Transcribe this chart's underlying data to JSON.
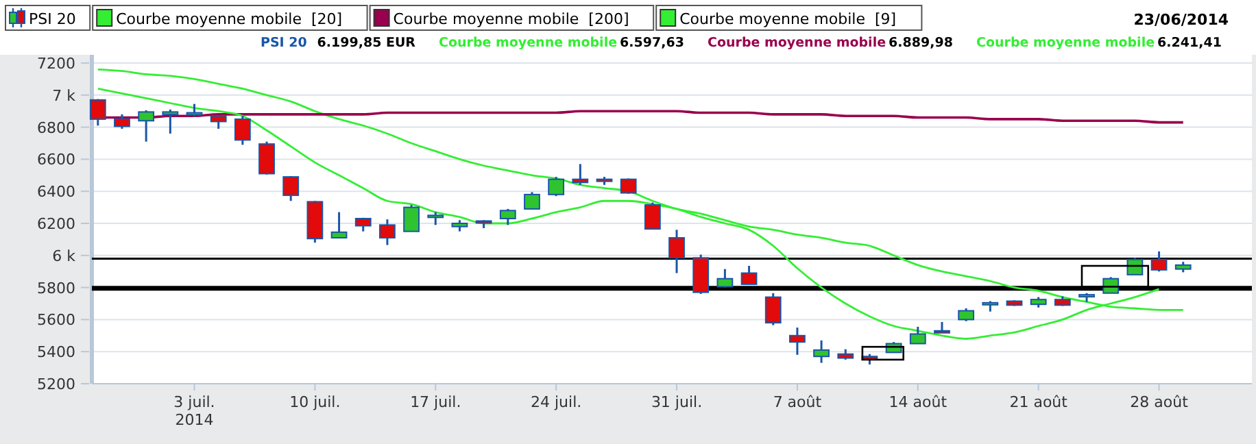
{
  "chart_data": {
    "type": "candlestick",
    "categories": [
      null,
      null,
      null,
      null,
      "3 juil.\n2014",
      null,
      null,
      null,
      null,
      "10 juil.",
      null,
      null,
      null,
      null,
      "17 juil.",
      null,
      null,
      null,
      null,
      "24 juil.",
      null,
      null,
      null,
      null,
      "31 juil.",
      null,
      null,
      null,
      null,
      "7 août",
      null,
      null,
      null,
      null,
      "14 août",
      null,
      null,
      null,
      null,
      "21 août",
      null,
      null,
      null,
      null,
      "28 août",
      null
    ],
    "series": [
      {
        "type": "candlestick",
        "name": "PSI 20",
        "color": "#1a56a8",
        "ohlc": [
          [
            6970,
            6975,
            6810,
            6850
          ],
          [
            6850,
            6880,
            6790,
            6805
          ],
          [
            6840,
            6905,
            6710,
            6895
          ],
          [
            6880,
            6910,
            6760,
            6895
          ],
          [
            6885,
            6945,
            6865,
            6890
          ],
          [
            6870,
            6875,
            6790,
            6835
          ],
          [
            6850,
            6870,
            6690,
            6720
          ],
          [
            6695,
            6710,
            6505,
            6510
          ],
          [
            6490,
            6495,
            6340,
            6375
          ],
          [
            6335,
            6340,
            6080,
            6105
          ],
          [
            6110,
            6270,
            6110,
            6145
          ],
          [
            6230,
            6235,
            6150,
            6185
          ],
          [
            6190,
            6225,
            6065,
            6110
          ],
          [
            6150,
            6315,
            6150,
            6300
          ],
          [
            6245,
            6270,
            6190,
            6250
          ],
          [
            6180,
            6220,
            6150,
            6200
          ],
          [
            6215,
            6220,
            6170,
            6205
          ],
          [
            6230,
            6290,
            6190,
            6280
          ],
          [
            6290,
            6395,
            6290,
            6380
          ],
          [
            6380,
            6490,
            6370,
            6475
          ],
          [
            6475,
            6570,
            6440,
            6455
          ],
          [
            6475,
            6490,
            6440,
            6470
          ],
          [
            6475,
            6480,
            6385,
            6390
          ],
          [
            6315,
            6330,
            6165,
            6165
          ],
          [
            6110,
            6160,
            5890,
            5985
          ],
          [
            5985,
            6005,
            5760,
            5770
          ],
          [
            5805,
            5915,
            5800,
            5855
          ],
          [
            5890,
            5935,
            5820,
            5820
          ],
          [
            5740,
            5765,
            5565,
            5580
          ],
          [
            5500,
            5550,
            5380,
            5460
          ],
          [
            5370,
            5470,
            5330,
            5410
          ],
          [
            5385,
            5415,
            5350,
            5360
          ],
          [
            5370,
            5385,
            5320,
            5350
          ],
          [
            5395,
            5460,
            5395,
            5450
          ],
          [
            5450,
            5555,
            5450,
            5510
          ],
          [
            5530,
            5585,
            5525,
            5525
          ],
          [
            5600,
            5670,
            5590,
            5655
          ],
          [
            5700,
            5715,
            5650,
            5705
          ],
          [
            5715,
            5720,
            5685,
            5690
          ],
          [
            5695,
            5740,
            5675,
            5725
          ],
          [
            5725,
            5745,
            5685,
            5690
          ],
          [
            5750,
            5765,
            5710,
            5755
          ],
          [
            5765,
            5865,
            5765,
            5855
          ],
          [
            5880,
            5985,
            5880,
            5975
          ],
          [
            5975,
            6025,
            5900,
            5910
          ],
          [
            5915,
            5960,
            5895,
            5940
          ]
        ]
      },
      {
        "type": "line",
        "name": "Courbe moyenne mobile  [20]",
        "color": "#33ee33",
        "values": [
          7160,
          7150,
          7130,
          7120,
          7100,
          7070,
          7040,
          7000,
          6960,
          6900,
          6850,
          6810,
          6760,
          6700,
          6650,
          6600,
          6560,
          6530,
          6500,
          6480,
          6440,
          6420,
          6400,
          6340,
          6290,
          6260,
          6220,
          6180,
          6160,
          6130,
          6110,
          6080,
          6060,
          6000,
          5940,
          5900,
          5870,
          5840,
          5800,
          5780,
          5740,
          5710,
          5680,
          5670,
          5660,
          5660
        ]
      },
      {
        "type": "line",
        "name": "Courbe moyenne mobile  [200]",
        "color": "#99004d",
        "values": [
          6860,
          6860,
          6860,
          6870,
          6870,
          6880,
          6880,
          6880,
          6880,
          6880,
          6880,
          6880,
          6890,
          6890,
          6890,
          6890,
          6890,
          6890,
          6890,
          6890,
          6900,
          6900,
          6900,
          6900,
          6900,
          6890,
          6890,
          6890,
          6880,
          6880,
          6880,
          6870,
          6870,
          6870,
          6860,
          6860,
          6860,
          6850,
          6850,
          6850,
          6840,
          6840,
          6840,
          6840,
          6830,
          6830
        ]
      },
      {
        "type": "line",
        "name": "Courbe moyenne mobile  [9]",
        "color": "#33ee33",
        "values": [
          7040,
          7010,
          6980,
          6950,
          6920,
          6900,
          6870,
          6780,
          6680,
          6580,
          6500,
          6420,
          6340,
          6320,
          6270,
          6240,
          6200,
          6200,
          6230,
          6270,
          6300,
          6340,
          6340,
          6320,
          6290,
          6240,
          6200,
          6160,
          6060,
          5920,
          5800,
          5700,
          5620,
          5560,
          5530,
          5500,
          5480,
          5500,
          5520,
          5560,
          5600,
          5660,
          5700,
          5740,
          5790,
          null
        ]
      }
    ],
    "ylim": [
      5200,
      7200
    ],
    "yticks": [
      7200,
      {
        "value": 7000,
        "label": "7 k"
      },
      6800,
      6600,
      6400,
      6200,
      {
        "value": 6000,
        "label": "6 k"
      },
      5800,
      5600,
      5400,
      5200
    ],
    "grid": "y",
    "legend": "top left",
    "ref_lines": [
      {
        "axis": "y",
        "value": 5980,
        "color": "#000000"
      },
      {
        "axis": "y",
        "value": 5795,
        "color": "#000000"
      }
    ],
    "annotations": [
      "23/06/2014",
      "PSI 20",
      "6.199,85 EUR",
      "Courbe moyenne mobile",
      "6.597,63",
      "Courbe moyenne mobile",
      "6.889,98",
      "Courbe moyenne mobile",
      "6.241,41"
    ]
  }
}
